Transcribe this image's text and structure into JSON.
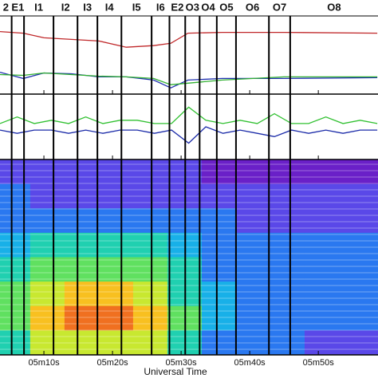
{
  "regions": {
    "labels": [
      "2",
      "E1",
      "I1",
      "I2",
      "I3",
      "I4",
      "I5",
      "I6",
      "E2",
      "O3",
      "O4",
      "O5",
      "O6",
      "O7",
      "O8"
    ],
    "boundaries": [
      5.3,
      7.1,
      11.4,
      14.9,
      17.8,
      21.3,
      25.7,
      28.3,
      30.6,
      32.7,
      35.2,
      38.0,
      42.8,
      45.9
    ]
  },
  "chart_data": [
    {
      "type": "line",
      "xlim": [
        3.6,
        58.7
      ],
      "ylim": [
        0,
        100
      ],
      "x": [
        3.6,
        7,
        10,
        14,
        18,
        22,
        26,
        28.5,
        31,
        36,
        45,
        58.6
      ],
      "series": [
        {
          "color": "#c0282a",
          "values": [
            80,
            78,
            72,
            70,
            68,
            60,
            62,
            65,
            78,
            79,
            79,
            78
          ]
        },
        {
          "color": "#2030b0",
          "values": [
            28,
            20,
            27,
            26,
            22,
            22,
            18,
            8,
            18,
            20,
            20,
            21
          ]
        },
        {
          "color": "#30b030",
          "values": [
            25,
            24,
            27,
            25,
            23,
            22,
            20,
            12,
            14,
            18,
            22,
            22
          ]
        }
      ]
    },
    {
      "type": "line",
      "xlim": [
        3.6,
        58.7
      ],
      "ylim": [
        -10,
        10
      ],
      "x": [
        3.6,
        6.1,
        8.6,
        11.1,
        13.6,
        16.1,
        18.6,
        21.1,
        23.6,
        26.1,
        28.6,
        31.1,
        33.6,
        36.1,
        38.6,
        41.1,
        43.6,
        46.1,
        48.6,
        51.1,
        53.6,
        56.1,
        58.6
      ],
      "series": [
        {
          "color": "#30c030",
          "values": [
            1,
            3,
            1,
            2,
            1,
            3,
            1,
            2,
            2,
            1,
            1,
            6,
            2,
            1,
            2,
            1,
            4,
            1,
            1,
            3,
            1,
            2,
            1
          ]
        },
        {
          "color": "#1a2aa8",
          "values": [
            -1,
            -2,
            -1,
            -1,
            -2,
            -1,
            -2,
            -1,
            -1,
            -2,
            -1,
            -5,
            0,
            -2,
            -1,
            -2,
            -3,
            -1,
            -2,
            -1,
            -2,
            -1,
            -1
          ]
        }
      ]
    },
    {
      "type": "heatmap",
      "xlim": [
        3.6,
        58.7
      ],
      "xlabel": "Universal Time",
      "xticks": [
        {
          "value": 10,
          "label": "05m10s"
        },
        {
          "value": 20,
          "label": "05m20s"
        },
        {
          "value": 30,
          "label": "05m30s"
        },
        {
          "value": 40,
          "label": "05m40s"
        },
        {
          "value": 50,
          "label": "05m50s"
        }
      ],
      "x": [
        3.6,
        8,
        13,
        18,
        23,
        28,
        33,
        38,
        43,
        48,
        53,
        58.7
      ],
      "zlim": [
        0,
        10
      ],
      "colormap": [
        "#3a0a8a",
        "#6a20c8",
        "#5a48e8",
        "#2a78f0",
        "#18b0e8",
        "#20d0b0",
        "#60e060",
        "#c8e830",
        "#f8c020",
        "#f07020",
        "#d02010"
      ],
      "values": [
        [
          2,
          2,
          2,
          2,
          2,
          2,
          1,
          1,
          1,
          1,
          1
        ],
        [
          3,
          2,
          2,
          2,
          2,
          2,
          2,
          2,
          2,
          2,
          2
        ],
        [
          3,
          3,
          3,
          3,
          3,
          3,
          3,
          2,
          2,
          2,
          2
        ],
        [
          4,
          5,
          5,
          5,
          5,
          4,
          3,
          3,
          3,
          3,
          3
        ],
        [
          5,
          6,
          6,
          6,
          6,
          5,
          3,
          3,
          3,
          3,
          3
        ],
        [
          6,
          7,
          8,
          8,
          7,
          5,
          4,
          3,
          3,
          3,
          3
        ],
        [
          6,
          8,
          9,
          9,
          8,
          6,
          4,
          3,
          3,
          3,
          3
        ],
        [
          5,
          7,
          7,
          7,
          7,
          5,
          3,
          3,
          3,
          2,
          2
        ]
      ]
    }
  ]
}
